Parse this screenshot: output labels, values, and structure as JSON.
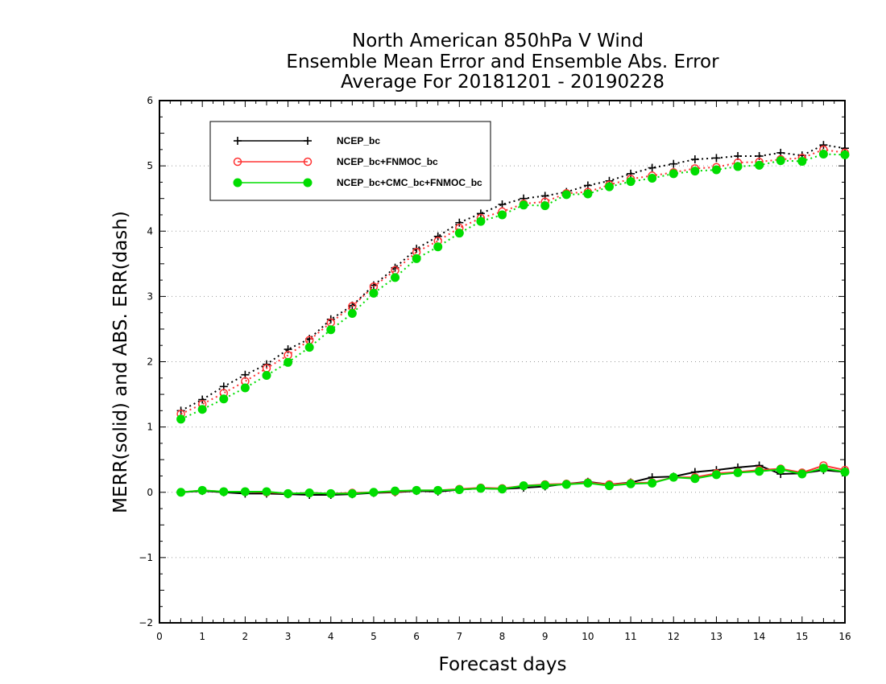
{
  "chart_data": {
    "type": "line",
    "title": [
      "North American 850hPa V Wind",
      "Ensemble Mean Error and Ensemble Abs. Error",
      "Average For 20181201 - 20190228"
    ],
    "xlabel": "Forecast days",
    "ylabel": "MERR(solid) and ABS. ERR(dash)",
    "xlim": [
      0,
      16
    ],
    "ylim": [
      -2,
      6
    ],
    "x_ticks": [
      "0",
      "1",
      "2",
      "3",
      "4",
      "5",
      "6",
      "7",
      "8",
      "9",
      "10",
      "11",
      "12",
      "13",
      "14",
      "15",
      "16"
    ],
    "y_ticks": [
      "−2",
      "−1",
      "0",
      "1",
      "2",
      "3",
      "4",
      "5",
      "6"
    ],
    "grid": "horizontal dotted",
    "legend_position": "top-left",
    "x": [
      0.5,
      1,
      1.5,
      2,
      2.5,
      3,
      3.5,
      4,
      4.5,
      5,
      5.5,
      6,
      6.5,
      7,
      7.5,
      8,
      8.5,
      9,
      9.5,
      10,
      10.5,
      11,
      11.5,
      12,
      12.5,
      13,
      13.5,
      14,
      14.5,
      15,
      15.5,
      16
    ],
    "series": [
      {
        "name": "NCEP_bc",
        "color": "#000000",
        "marker": "plus",
        "merr": [
          0.0,
          0.02,
          0.0,
          -0.02,
          -0.02,
          -0.03,
          -0.04,
          -0.04,
          -0.03,
          -0.01,
          0.0,
          0.02,
          0.01,
          0.04,
          0.06,
          0.05,
          0.07,
          0.09,
          0.13,
          0.16,
          0.12,
          0.15,
          0.23,
          0.24,
          0.31,
          0.34,
          0.38,
          0.41,
          0.28,
          0.29,
          0.34,
          0.31
        ],
        "abs_err": [
          1.25,
          1.42,
          1.62,
          1.8,
          1.96,
          2.19,
          2.35,
          2.65,
          2.86,
          3.17,
          3.44,
          3.73,
          3.92,
          4.13,
          4.27,
          4.41,
          4.5,
          4.54,
          4.6,
          4.7,
          4.77,
          4.88,
          4.97,
          5.03,
          5.1,
          5.12,
          5.15,
          5.15,
          5.2,
          5.16,
          5.32,
          5.27
        ]
      },
      {
        "name": "NCEP_bc+FNMOC_bc",
        "color": "#ff3333",
        "marker": "open-circle",
        "merr": [
          0.0,
          0.03,
          0.01,
          0.01,
          0.0,
          -0.02,
          -0.01,
          -0.02,
          -0.01,
          0.0,
          0.01,
          0.03,
          0.03,
          0.05,
          0.07,
          0.06,
          0.1,
          0.12,
          0.13,
          0.15,
          0.12,
          0.14,
          0.15,
          0.23,
          0.23,
          0.29,
          0.31,
          0.34,
          0.36,
          0.3,
          0.41,
          0.34
        ],
        "abs_err": [
          1.2,
          1.35,
          1.52,
          1.7,
          1.9,
          2.1,
          2.33,
          2.6,
          2.85,
          3.15,
          3.4,
          3.68,
          3.85,
          4.05,
          4.2,
          4.3,
          4.42,
          4.45,
          4.58,
          4.6,
          4.71,
          4.8,
          4.85,
          4.9,
          4.96,
          4.98,
          5.05,
          5.06,
          5.1,
          5.12,
          5.25,
          5.2
        ]
      },
      {
        "name": "NCEP_bc+CMC_bc+FNMOC_bc",
        "color": "#00dd00",
        "marker": "filled-circle",
        "merr": [
          0.0,
          0.03,
          0.01,
          0.01,
          0.01,
          -0.02,
          -0.01,
          -0.02,
          -0.02,
          0.0,
          0.02,
          0.03,
          0.03,
          0.04,
          0.06,
          0.05,
          0.1,
          0.11,
          0.12,
          0.14,
          0.1,
          0.13,
          0.14,
          0.23,
          0.21,
          0.27,
          0.3,
          0.32,
          0.35,
          0.28,
          0.37,
          0.31
        ],
        "abs_err": [
          1.12,
          1.27,
          1.43,
          1.6,
          1.79,
          1.99,
          2.22,
          2.49,
          2.74,
          3.05,
          3.29,
          3.58,
          3.76,
          3.97,
          4.15,
          4.25,
          4.4,
          4.39,
          4.56,
          4.57,
          4.68,
          4.76,
          4.81,
          4.88,
          4.92,
          4.94,
          4.99,
          5.01,
          5.08,
          5.07,
          5.18,
          5.17
        ]
      }
    ]
  }
}
